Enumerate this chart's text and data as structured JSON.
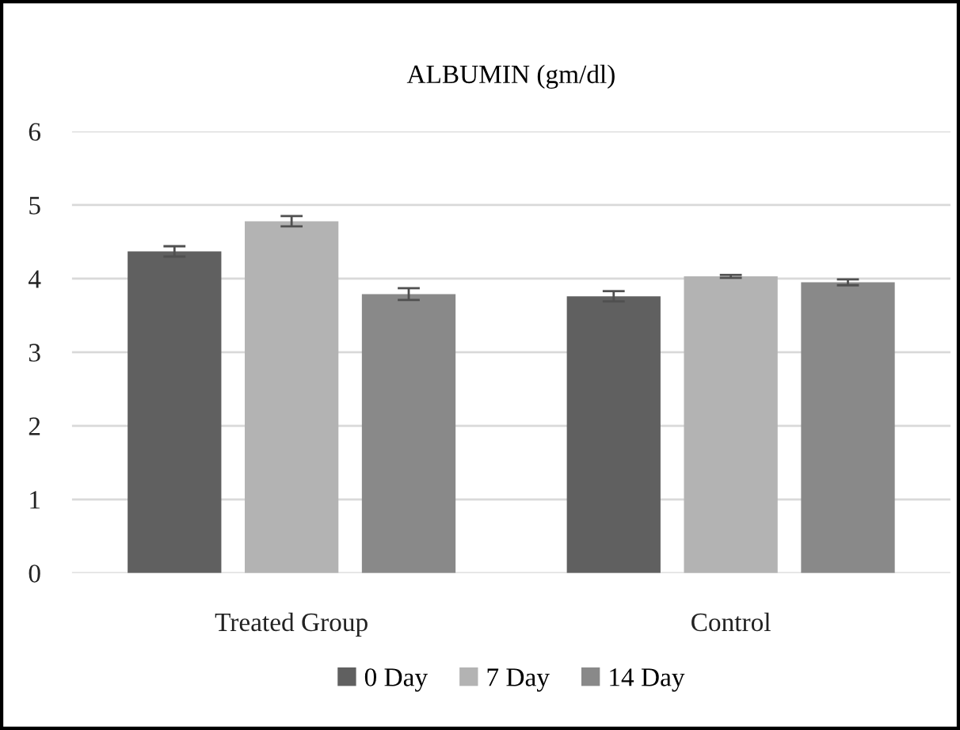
{
  "chart_data": {
    "type": "bar",
    "title": "ALBUMIN (gm/dl)",
    "categories": [
      "Treated Group",
      "Control"
    ],
    "series": [
      {
        "name": "0 Day",
        "color": "#606060",
        "values": [
          4.37,
          3.76
        ],
        "errors": [
          0.07,
          0.07
        ]
      },
      {
        "name": "7 Day",
        "color": "#b3b3b3",
        "values": [
          4.78,
          4.03
        ],
        "errors": [
          0.07,
          0.02
        ]
      },
      {
        "name": "14 Day",
        "color": "#898989",
        "values": [
          3.79,
          3.95
        ],
        "errors": [
          0.08,
          0.04
        ]
      }
    ],
    "ylim": [
      0,
      6
    ],
    "yticks": [
      0,
      1,
      2,
      3,
      4,
      5,
      6
    ],
    "grid": "y",
    "legend": "bottom"
  }
}
